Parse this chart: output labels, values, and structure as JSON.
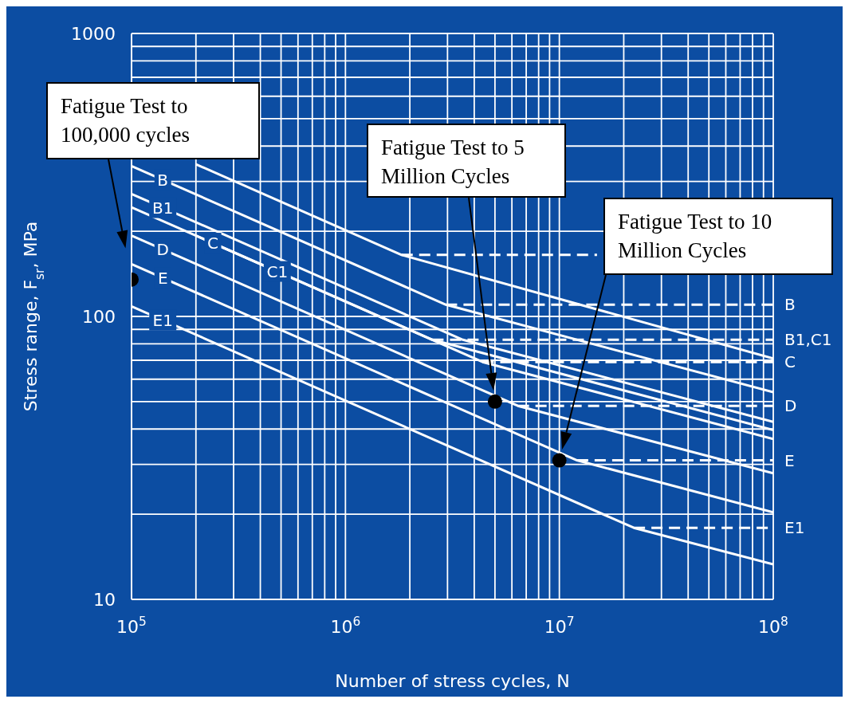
{
  "chart_data": {
    "type": "line",
    "xlabel": "Number of stress cycles, N",
    "ylabel": "Stress range, F$_{sr}$, MPa",
    "log": "xy",
    "grid": true,
    "marker": "none",
    "line_style": "solid",
    "xlim": [
      100000,
      100000000
    ],
    "xticks": [
      {
        "value": 100000,
        "label": "10$^{5}$"
      },
      {
        "value": 200000,
        "label": null
      },
      {
        "value": 300000,
        "label": null
      },
      {
        "value": 400000,
        "label": null
      },
      {
        "value": 500000,
        "label": null
      },
      {
        "value": 600000,
        "label": null
      },
      {
        "value": 700000,
        "label": null
      },
      {
        "value": 800000,
        "label": null
      },
      {
        "value": 900000,
        "label": null
      },
      {
        "value": 1000000,
        "label": "10$^{6}$"
      },
      {
        "value": 2000000,
        "label": null
      },
      {
        "value": 3000000,
        "label": null
      },
      {
        "value": 4000000,
        "label": null
      },
      {
        "value": 5000000,
        "label": null
      },
      {
        "value": 6000000,
        "label": null
      },
      {
        "value": 7000000,
        "label": null
      },
      {
        "value": 8000000,
        "label": null
      },
      {
        "value": 9000000,
        "label": null
      },
      {
        "value": 10000000,
        "label": "10$^{7}$"
      },
      {
        "value": 20000000,
        "label": null
      },
      {
        "value": 30000000,
        "label": null
      },
      {
        "value": 40000000,
        "label": null
      },
      {
        "value": 50000000,
        "label": null
      },
      {
        "value": 60000000,
        "label": null
      },
      {
        "value": 70000000,
        "label": null
      },
      {
        "value": 80000000,
        "label": null
      },
      {
        "value": 90000000,
        "label": null
      },
      {
        "value": 100000000,
        "label": "10$^{8}$"
      }
    ],
    "ylim": [
      10,
      1000
    ],
    "yticks": [
      10,
      {
        "value": 20,
        "label": null
      },
      {
        "value": 30,
        "label": null
      },
      {
        "value": 40,
        "label": null
      },
      {
        "value": 50,
        "label": null
      },
      {
        "value": 60,
        "label": null
      },
      {
        "value": 70,
        "label": null
      },
      {
        "value": 80,
        "label": null
      },
      {
        "value": 90,
        "label": null
      },
      100,
      {
        "value": 200,
        "label": null
      },
      {
        "value": 300,
        "label": null
      },
      {
        "value": 400,
        "label": null
      },
      {
        "value": 500,
        "label": null
      },
      {
        "value": 600,
        "label": null
      },
      {
        "value": 700,
        "label": null
      },
      {
        "value": 800,
        "label": null
      },
      {
        "value": 900,
        "label": null
      },
      1000
    ],
    "series": [
      {
        "color": "#ffffff",
        "x": [
          200000,
          1830000,
          100000000
        ],
        "values": [
          345,
          165,
          71
        ]
      },
      {
        "name": "B",
        "color": "#ffffff",
        "x": [
          100000,
          2950000,
          100000000
        ],
        "values": [
          340,
          110,
          54
        ]
      },
      {
        "name": "B1",
        "color": "#ffffff",
        "x": [
          100000,
          3540000,
          100000000
        ],
        "values": [
          271,
          82.7,
          42.4
        ]
      },
      {
        "name": "C",
        "color": "#ffffff",
        "x": [
          100000,
          4380000,
          100000000
        ],
        "values": [
          243,
          69,
          36.9
        ]
      },
      {
        "name": "C1",
        "color": "#ffffff",
        "x": [
          200000,
          2550000,
          100000000
        ],
        "values": [
          193,
          82.7,
          39.7
        ]
      },
      {
        "name": "D",
        "color": "#ffffff",
        "x": [
          100000,
          6400000,
          100000000
        ],
        "values": [
          193,
          48.3,
          27.9
        ]
      },
      {
        "name": "E",
        "color": "#ffffff",
        "x": [
          100000,
          12100000,
          100000000
        ],
        "values": [
          153,
          31,
          20.3
        ]
      },
      {
        "name": "E1",
        "color": "#ffffff",
        "x": [
          100000,
          22300000,
          100000000
        ],
        "values": [
          108.6,
          17.9,
          13.3
        ]
      },
      {
        "color": "#ffffff",
        "line_style": "dashed",
        "x": [
          1830000,
          15000000
        ],
        "values": [
          165,
          165
        ]
      },
      {
        "name": "B",
        "color": "#ffffff",
        "line_style": "dashed",
        "x": [
          2950000,
          100000000
        ],
        "values": [
          110,
          110
        ]
      },
      {
        "name": "B1,C1",
        "color": "#ffffff",
        "line_style": "dashed",
        "x": [
          2550000,
          100000000
        ],
        "values": [
          82.7,
          82.7
        ]
      },
      {
        "name": "C",
        "color": "#ffffff",
        "line_style": "dashed",
        "x": [
          4380000,
          100000000
        ],
        "values": [
          69,
          69
        ]
      },
      {
        "name": "D",
        "color": "#ffffff",
        "line_style": "dashed",
        "x": [
          6400000,
          100000000
        ],
        "values": [
          48.3,
          48.3
        ]
      },
      {
        "name": "E",
        "color": "#ffffff",
        "line_style": "dashed",
        "x": [
          12100000,
          100000000
        ],
        "values": [
          31,
          31
        ]
      },
      {
        "name": "E1",
        "color": "#ffffff",
        "line_style": "dashed",
        "x": [
          22300000,
          100000000
        ],
        "values": [
          17.9,
          17.9
        ]
      },
      {
        "type": "scatter",
        "marker": "circle",
        "color": "#000000",
        "x": [
          100000,
          5000000,
          10000000
        ],
        "values": [
          135,
          50,
          31
        ]
      }
    ],
    "annotations": [
      "Fatigue Test to 100,000 cycles",
      "Fatigue Test to 5 Million Cycles",
      "Fatigue Test to 10 Million Cycles"
    ]
  }
}
